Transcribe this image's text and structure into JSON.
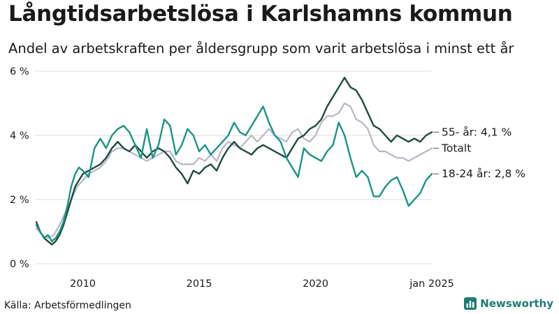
{
  "header": {
    "title": "Långtidsarbetslösa i Karlshamns kommun",
    "subtitle": "Andel av arbetskraften per åldersgrupp som varit arbetslösa i minst ett år"
  },
  "footer": {
    "source": "Källa: Arbetsförmedlingen",
    "brand": "Newsworthy"
  },
  "colors": {
    "age_55_plus": "#1d4a3f",
    "total": "#b8b6c4",
    "age_18_24": "#1a9483",
    "grid": "#dddddd",
    "brand": "#1e7c74"
  },
  "chart_data": {
    "type": "line",
    "title": "Långtidsarbetslösa i Karlshamns kommun",
    "subtitle": "Andel av arbetskraften per åldersgrupp som varit arbetslösa i minst ett år",
    "xlabel": "",
    "ylabel": "",
    "xlim": [
      "2008-01",
      "2025-01"
    ],
    "ylim": [
      0,
      6
    ],
    "y_ticks": [
      0,
      2,
      4,
      6
    ],
    "y_tick_labels": [
      "0 %",
      "2 %",
      "4 %",
      "6 %"
    ],
    "x_ticks": [
      "2010-01",
      "2015-01",
      "2020-01",
      "2025-01"
    ],
    "x_tick_labels": [
      "2010",
      "2015",
      "2020",
      "jan 2025"
    ],
    "grid": "horizontal",
    "legend": "end-of-line labels",
    "series": [
      {
        "name": "Totalt",
        "label": "Totalt",
        "color_key": "total",
        "data": [
          [
            "2008-01",
            1.1
          ],
          [
            "2008-04",
            0.9
          ],
          [
            "2008-07",
            0.8
          ],
          [
            "2008-10",
            0.9
          ],
          [
            "2009-01",
            1.2
          ],
          [
            "2009-04",
            1.6
          ],
          [
            "2009-07",
            2.0
          ],
          [
            "2009-10",
            2.4
          ],
          [
            "2010-01",
            2.6
          ],
          [
            "2010-04",
            2.8
          ],
          [
            "2010-07",
            2.9
          ],
          [
            "2010-10",
            3.0
          ],
          [
            "2011-01",
            3.2
          ],
          [
            "2011-04",
            3.5
          ],
          [
            "2011-07",
            3.6
          ],
          [
            "2011-10",
            3.6
          ],
          [
            "2012-01",
            3.5
          ],
          [
            "2012-04",
            3.4
          ],
          [
            "2012-07",
            3.3
          ],
          [
            "2012-10",
            3.2
          ],
          [
            "2013-01",
            3.3
          ],
          [
            "2013-04",
            3.4
          ],
          [
            "2013-07",
            3.5
          ],
          [
            "2013-10",
            3.5
          ],
          [
            "2014-01",
            3.2
          ],
          [
            "2014-04",
            3.1
          ],
          [
            "2014-07",
            3.1
          ],
          [
            "2014-10",
            3.1
          ],
          [
            "2015-01",
            3.3
          ],
          [
            "2015-04",
            3.2
          ],
          [
            "2015-07",
            3.4
          ],
          [
            "2015-10",
            3.2
          ],
          [
            "2016-01",
            3.6
          ],
          [
            "2016-04",
            3.8
          ],
          [
            "2016-07",
            3.7
          ],
          [
            "2016-10",
            3.6
          ],
          [
            "2017-01",
            3.8
          ],
          [
            "2017-04",
            4.0
          ],
          [
            "2017-07",
            3.8
          ],
          [
            "2017-10",
            4.0
          ],
          [
            "2018-01",
            4.2
          ],
          [
            "2018-04",
            4.0
          ],
          [
            "2018-07",
            3.9
          ],
          [
            "2018-10",
            3.8
          ],
          [
            "2019-01",
            4.1
          ],
          [
            "2019-04",
            4.2
          ],
          [
            "2019-07",
            3.9
          ],
          [
            "2019-10",
            3.8
          ],
          [
            "2020-01",
            4.0
          ],
          [
            "2020-04",
            4.4
          ],
          [
            "2020-07",
            4.6
          ],
          [
            "2020-10",
            4.6
          ],
          [
            "2021-01",
            4.7
          ],
          [
            "2021-04",
            5.0
          ],
          [
            "2021-07",
            4.9
          ],
          [
            "2021-10",
            4.5
          ],
          [
            "2022-01",
            4.4
          ],
          [
            "2022-04",
            4.2
          ],
          [
            "2022-07",
            3.7
          ],
          [
            "2022-10",
            3.5
          ],
          [
            "2023-01",
            3.5
          ],
          [
            "2023-04",
            3.4
          ],
          [
            "2023-07",
            3.3
          ],
          [
            "2023-10",
            3.3
          ],
          [
            "2024-01",
            3.2
          ],
          [
            "2024-04",
            3.3
          ],
          [
            "2024-07",
            3.4
          ],
          [
            "2024-10",
            3.5
          ],
          [
            "2025-01",
            3.6
          ]
        ]
      },
      {
        "name": "55- år",
        "label": "55- år: 4,1 %",
        "color_key": "age_55_plus",
        "data": [
          [
            "2008-01",
            1.3
          ],
          [
            "2008-03",
            1.0
          ],
          [
            "2008-05",
            0.8
          ],
          [
            "2008-07",
            0.7
          ],
          [
            "2008-09",
            0.6
          ],
          [
            "2008-11",
            0.7
          ],
          [
            "2009-01",
            0.9
          ],
          [
            "2009-03",
            1.2
          ],
          [
            "2009-05",
            1.6
          ],
          [
            "2009-07",
            2.0
          ],
          [
            "2009-09",
            2.4
          ],
          [
            "2009-11",
            2.6
          ],
          [
            "2010-01",
            2.8
          ],
          [
            "2010-04",
            2.9
          ],
          [
            "2010-07",
            3.0
          ],
          [
            "2010-10",
            3.1
          ],
          [
            "2011-01",
            3.3
          ],
          [
            "2011-04",
            3.6
          ],
          [
            "2011-07",
            3.8
          ],
          [
            "2011-10",
            3.6
          ],
          [
            "2012-01",
            3.5
          ],
          [
            "2012-04",
            3.7
          ],
          [
            "2012-07",
            3.5
          ],
          [
            "2012-10",
            3.3
          ],
          [
            "2013-01",
            3.5
          ],
          [
            "2013-04",
            3.6
          ],
          [
            "2013-07",
            3.5
          ],
          [
            "2013-10",
            3.3
          ],
          [
            "2014-01",
            3.0
          ],
          [
            "2014-04",
            2.8
          ],
          [
            "2014-07",
            2.5
          ],
          [
            "2014-10",
            2.9
          ],
          [
            "2015-01",
            2.8
          ],
          [
            "2015-04",
            3.0
          ],
          [
            "2015-07",
            3.1
          ],
          [
            "2015-10",
            2.9
          ],
          [
            "2016-01",
            3.3
          ],
          [
            "2016-04",
            3.6
          ],
          [
            "2016-07",
            3.8
          ],
          [
            "2016-10",
            3.6
          ],
          [
            "2017-01",
            3.5
          ],
          [
            "2017-04",
            3.4
          ],
          [
            "2017-07",
            3.6
          ],
          [
            "2017-10",
            3.7
          ],
          [
            "2018-01",
            3.6
          ],
          [
            "2018-04",
            3.5
          ],
          [
            "2018-07",
            3.4
          ],
          [
            "2018-10",
            3.3
          ],
          [
            "2019-01",
            3.6
          ],
          [
            "2019-04",
            3.9
          ],
          [
            "2019-07",
            4.0
          ],
          [
            "2019-10",
            4.2
          ],
          [
            "2020-01",
            4.3
          ],
          [
            "2020-04",
            4.5
          ],
          [
            "2020-07",
            4.9
          ],
          [
            "2020-10",
            5.2
          ],
          [
            "2021-01",
            5.5
          ],
          [
            "2021-04",
            5.8
          ],
          [
            "2021-07",
            5.5
          ],
          [
            "2021-10",
            5.4
          ],
          [
            "2022-01",
            5.1
          ],
          [
            "2022-04",
            4.7
          ],
          [
            "2022-07",
            4.3
          ],
          [
            "2022-10",
            4.2
          ],
          [
            "2023-01",
            4.0
          ],
          [
            "2023-04",
            3.8
          ],
          [
            "2023-07",
            4.0
          ],
          [
            "2023-10",
            3.9
          ],
          [
            "2024-01",
            3.8
          ],
          [
            "2024-04",
            3.9
          ],
          [
            "2024-07",
            3.8
          ],
          [
            "2024-10",
            4.0
          ],
          [
            "2025-01",
            4.1
          ]
        ]
      },
      {
        "name": "18-24 år",
        "label": "18-24 år: 2,8 %",
        "color_key": "age_18_24",
        "data": [
          [
            "2008-01",
            1.2
          ],
          [
            "2008-03",
            1.0
          ],
          [
            "2008-05",
            0.8
          ],
          [
            "2008-07",
            0.9
          ],
          [
            "2008-09",
            0.7
          ],
          [
            "2008-11",
            0.8
          ],
          [
            "2009-01",
            1.0
          ],
          [
            "2009-03",
            1.3
          ],
          [
            "2009-05",
            1.8
          ],
          [
            "2009-07",
            2.4
          ],
          [
            "2009-09",
            2.8
          ],
          [
            "2009-11",
            3.0
          ],
          [
            "2010-01",
            2.9
          ],
          [
            "2010-04",
            2.7
          ],
          [
            "2010-07",
            3.6
          ],
          [
            "2010-10",
            3.9
          ],
          [
            "2011-01",
            3.6
          ],
          [
            "2011-04",
            4.0
          ],
          [
            "2011-07",
            4.2
          ],
          [
            "2011-10",
            4.3
          ],
          [
            "2012-01",
            4.1
          ],
          [
            "2012-04",
            3.7
          ],
          [
            "2012-07",
            3.3
          ],
          [
            "2012-10",
            4.2
          ],
          [
            "2013-01",
            3.3
          ],
          [
            "2013-04",
            3.7
          ],
          [
            "2013-07",
            4.5
          ],
          [
            "2013-10",
            4.3
          ],
          [
            "2014-01",
            3.4
          ],
          [
            "2014-04",
            3.7
          ],
          [
            "2014-07",
            4.2
          ],
          [
            "2014-10",
            4.0
          ],
          [
            "2015-01",
            3.5
          ],
          [
            "2015-04",
            3.7
          ],
          [
            "2015-07",
            3.4
          ],
          [
            "2015-10",
            3.6
          ],
          [
            "2016-01",
            3.8
          ],
          [
            "2016-04",
            4.0
          ],
          [
            "2016-07",
            4.4
          ],
          [
            "2016-10",
            4.1
          ],
          [
            "2017-01",
            4.0
          ],
          [
            "2017-04",
            4.3
          ],
          [
            "2017-07",
            4.6
          ],
          [
            "2017-10",
            4.9
          ],
          [
            "2018-01",
            4.4
          ],
          [
            "2018-04",
            4.0
          ],
          [
            "2018-07",
            3.8
          ],
          [
            "2018-10",
            3.3
          ],
          [
            "2019-01",
            3.0
          ],
          [
            "2019-04",
            2.7
          ],
          [
            "2019-07",
            3.6
          ],
          [
            "2019-10",
            3.4
          ],
          [
            "2020-01",
            3.3
          ],
          [
            "2020-04",
            3.2
          ],
          [
            "2020-07",
            3.5
          ],
          [
            "2020-10",
            3.7
          ],
          [
            "2021-01",
            4.4
          ],
          [
            "2021-04",
            4.0
          ],
          [
            "2021-07",
            3.3
          ],
          [
            "2021-10",
            2.7
          ],
          [
            "2022-01",
            2.9
          ],
          [
            "2022-04",
            2.7
          ],
          [
            "2022-07",
            2.1
          ],
          [
            "2022-10",
            2.1
          ],
          [
            "2023-01",
            2.4
          ],
          [
            "2023-04",
            2.6
          ],
          [
            "2023-07",
            2.7
          ],
          [
            "2023-10",
            2.3
          ],
          [
            "2024-01",
            1.8
          ],
          [
            "2024-04",
            2.0
          ],
          [
            "2024-07",
            2.2
          ],
          [
            "2024-10",
            2.6
          ],
          [
            "2025-01",
            2.8
          ]
        ]
      }
    ]
  }
}
